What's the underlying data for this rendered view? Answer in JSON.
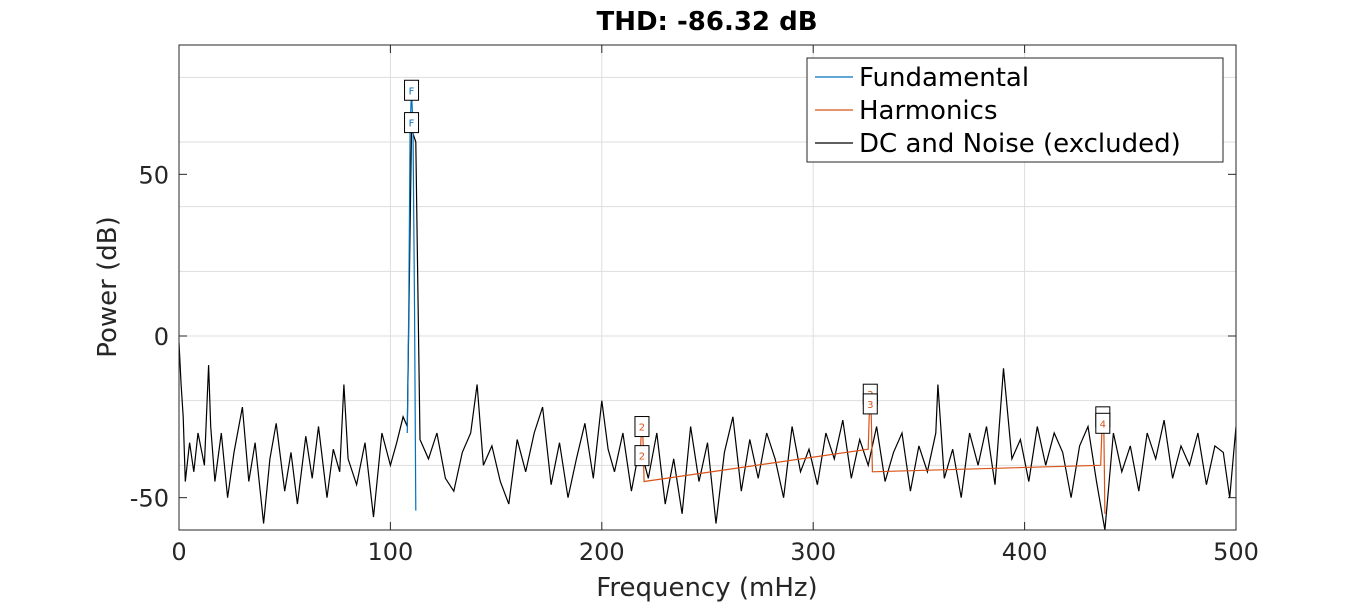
{
  "chart_data": {
    "type": "line",
    "title": "THD: -86.32 dB",
    "xlabel": "Frequency (mHz)",
    "ylabel": "Power (dB)",
    "xlim": [
      0,
      500
    ],
    "ylim": [
      -60,
      90
    ],
    "xticks": [
      0,
      100,
      200,
      300,
      400,
      500
    ],
    "xtick_labels": [
      "0",
      "100",
      "200",
      "300",
      "400",
      "500"
    ],
    "yticks": [
      -50,
      0,
      50
    ],
    "ytick_labels": [
      "-50",
      "0",
      "50"
    ],
    "grid": true,
    "legend_position": "top-right",
    "legend": [
      {
        "label": "Fundamental",
        "color": "#0072BD"
      },
      {
        "label": "Harmonics",
        "color": "#D95319"
      },
      {
        "label": "DC and Noise (excluded)",
        "color": "#000000"
      }
    ],
    "series": [
      {
        "name": "Fundamental",
        "color": "#0072BD",
        "x": [
          108,
          108.7,
          109.3,
          110,
          110.7,
          111.4,
          112
        ],
        "y": [
          -30,
          10,
          64,
          76,
          64,
          10,
          -54
        ]
      },
      {
        "name": "Harmonics",
        "color": "#D95319",
        "x": [
          218,
          218.5,
          219,
          219.5,
          220,
          326,
          326.5,
          327,
          327.5,
          328,
          436,
          436.5,
          437,
          437.5,
          438
        ],
        "y": [
          -40,
          -32,
          -28,
          -32,
          -45,
          -35,
          -25,
          -19,
          -25,
          -42,
          -40,
          -30,
          -25,
          -30,
          -55
        ]
      },
      {
        "name": "DC and Noise (excluded)",
        "color": "#000000",
        "x": [
          0,
          1,
          2,
          3,
          5,
          7,
          9,
          12,
          14,
          15,
          17,
          20,
          23,
          26,
          30,
          33,
          36,
          40,
          43,
          46,
          50,
          53,
          56,
          60,
          63,
          66,
          70,
          73,
          76,
          78,
          80,
          84,
          88,
          92,
          96,
          100,
          103,
          106,
          108,
          110,
          112,
          114,
          118,
          122,
          126,
          130,
          134,
          138,
          141,
          144,
          148,
          152,
          156,
          160,
          164,
          168,
          172,
          176,
          180,
          184,
          188,
          192,
          196,
          200,
          203,
          206,
          210,
          214,
          218,
          222,
          226,
          230,
          234,
          238,
          242,
          246,
          250,
          254,
          258,
          262,
          266,
          270,
          274,
          278,
          282,
          286,
          290,
          294,
          298,
          302,
          306,
          310,
          314,
          318,
          322,
          326,
          330,
          334,
          338,
          342,
          346,
          350,
          354,
          358,
          359,
          362,
          366,
          370,
          374,
          378,
          382,
          386,
          390,
          394,
          398,
          402,
          406,
          410,
          414,
          418,
          422,
          426,
          430,
          434,
          438,
          442,
          446,
          450,
          454,
          458,
          462,
          466,
          470,
          474,
          478,
          482,
          486,
          490,
          494,
          497,
          500
        ],
        "y": [
          -2,
          -15,
          -25,
          -45,
          -33,
          -42,
          -30,
          -40,
          -9,
          -28,
          -45,
          -30,
          -50,
          -36,
          -22,
          -45,
          -33,
          -58,
          -38,
          -27,
          -48,
          -36,
          -52,
          -31,
          -44,
          -28,
          -50,
          -35,
          -42,
          -15,
          -38,
          -46,
          -33,
          -56,
          -30,
          -40,
          -33,
          -25,
          -28,
          64,
          60,
          -32,
          -38,
          -30,
          -44,
          -48,
          -36,
          -30,
          -15,
          -40,
          -34,
          -45,
          -52,
          -32,
          -42,
          -30,
          -22,
          -46,
          -33,
          -50,
          -38,
          -27,
          -44,
          -20,
          -35,
          -42,
          -30,
          -48,
          -34,
          -44,
          -30,
          -52,
          -38,
          -55,
          -28,
          -45,
          -33,
          -58,
          -36,
          -25,
          -48,
          -32,
          -44,
          -30,
          -38,
          -50,
          -28,
          -42,
          -35,
          -46,
          -30,
          -38,
          -26,
          -44,
          -32,
          -40,
          -28,
          -45,
          -36,
          -30,
          -48,
          -34,
          -42,
          -30,
          -15,
          -44,
          -35,
          -50,
          -30,
          -40,
          -28,
          -46,
          -10,
          -38,
          -32,
          -45,
          -28,
          -40,
          -30,
          -36,
          -50,
          -34,
          -28,
          -45,
          -60,
          -30,
          -42,
          -34,
          -48,
          -30,
          -38,
          -26,
          -44,
          -34,
          -40,
          -30,
          -46,
          -34,
          -36,
          -50,
          -28
        ]
      }
    ],
    "markers": [
      {
        "label": "F",
        "x": 110,
        "y": 76,
        "color": "#0072BD"
      },
      {
        "label": "F",
        "x": 110,
        "y": 66,
        "color": "#0072BD"
      },
      {
        "label": "2",
        "x": 219,
        "y": -28,
        "color": "#D95319"
      },
      {
        "label": "2",
        "x": 219,
        "y": -37,
        "color": "#D95319"
      },
      {
        "label": "3",
        "x": 327,
        "y": -18,
        "color": "#D95319"
      },
      {
        "label": "3",
        "x": 327,
        "y": -21,
        "color": "#D95319"
      },
      {
        "label": "4",
        "x": 437,
        "y": -25,
        "color": "#D95319"
      },
      {
        "label": "4",
        "x": 437,
        "y": -27,
        "color": "#D95319"
      }
    ]
  }
}
